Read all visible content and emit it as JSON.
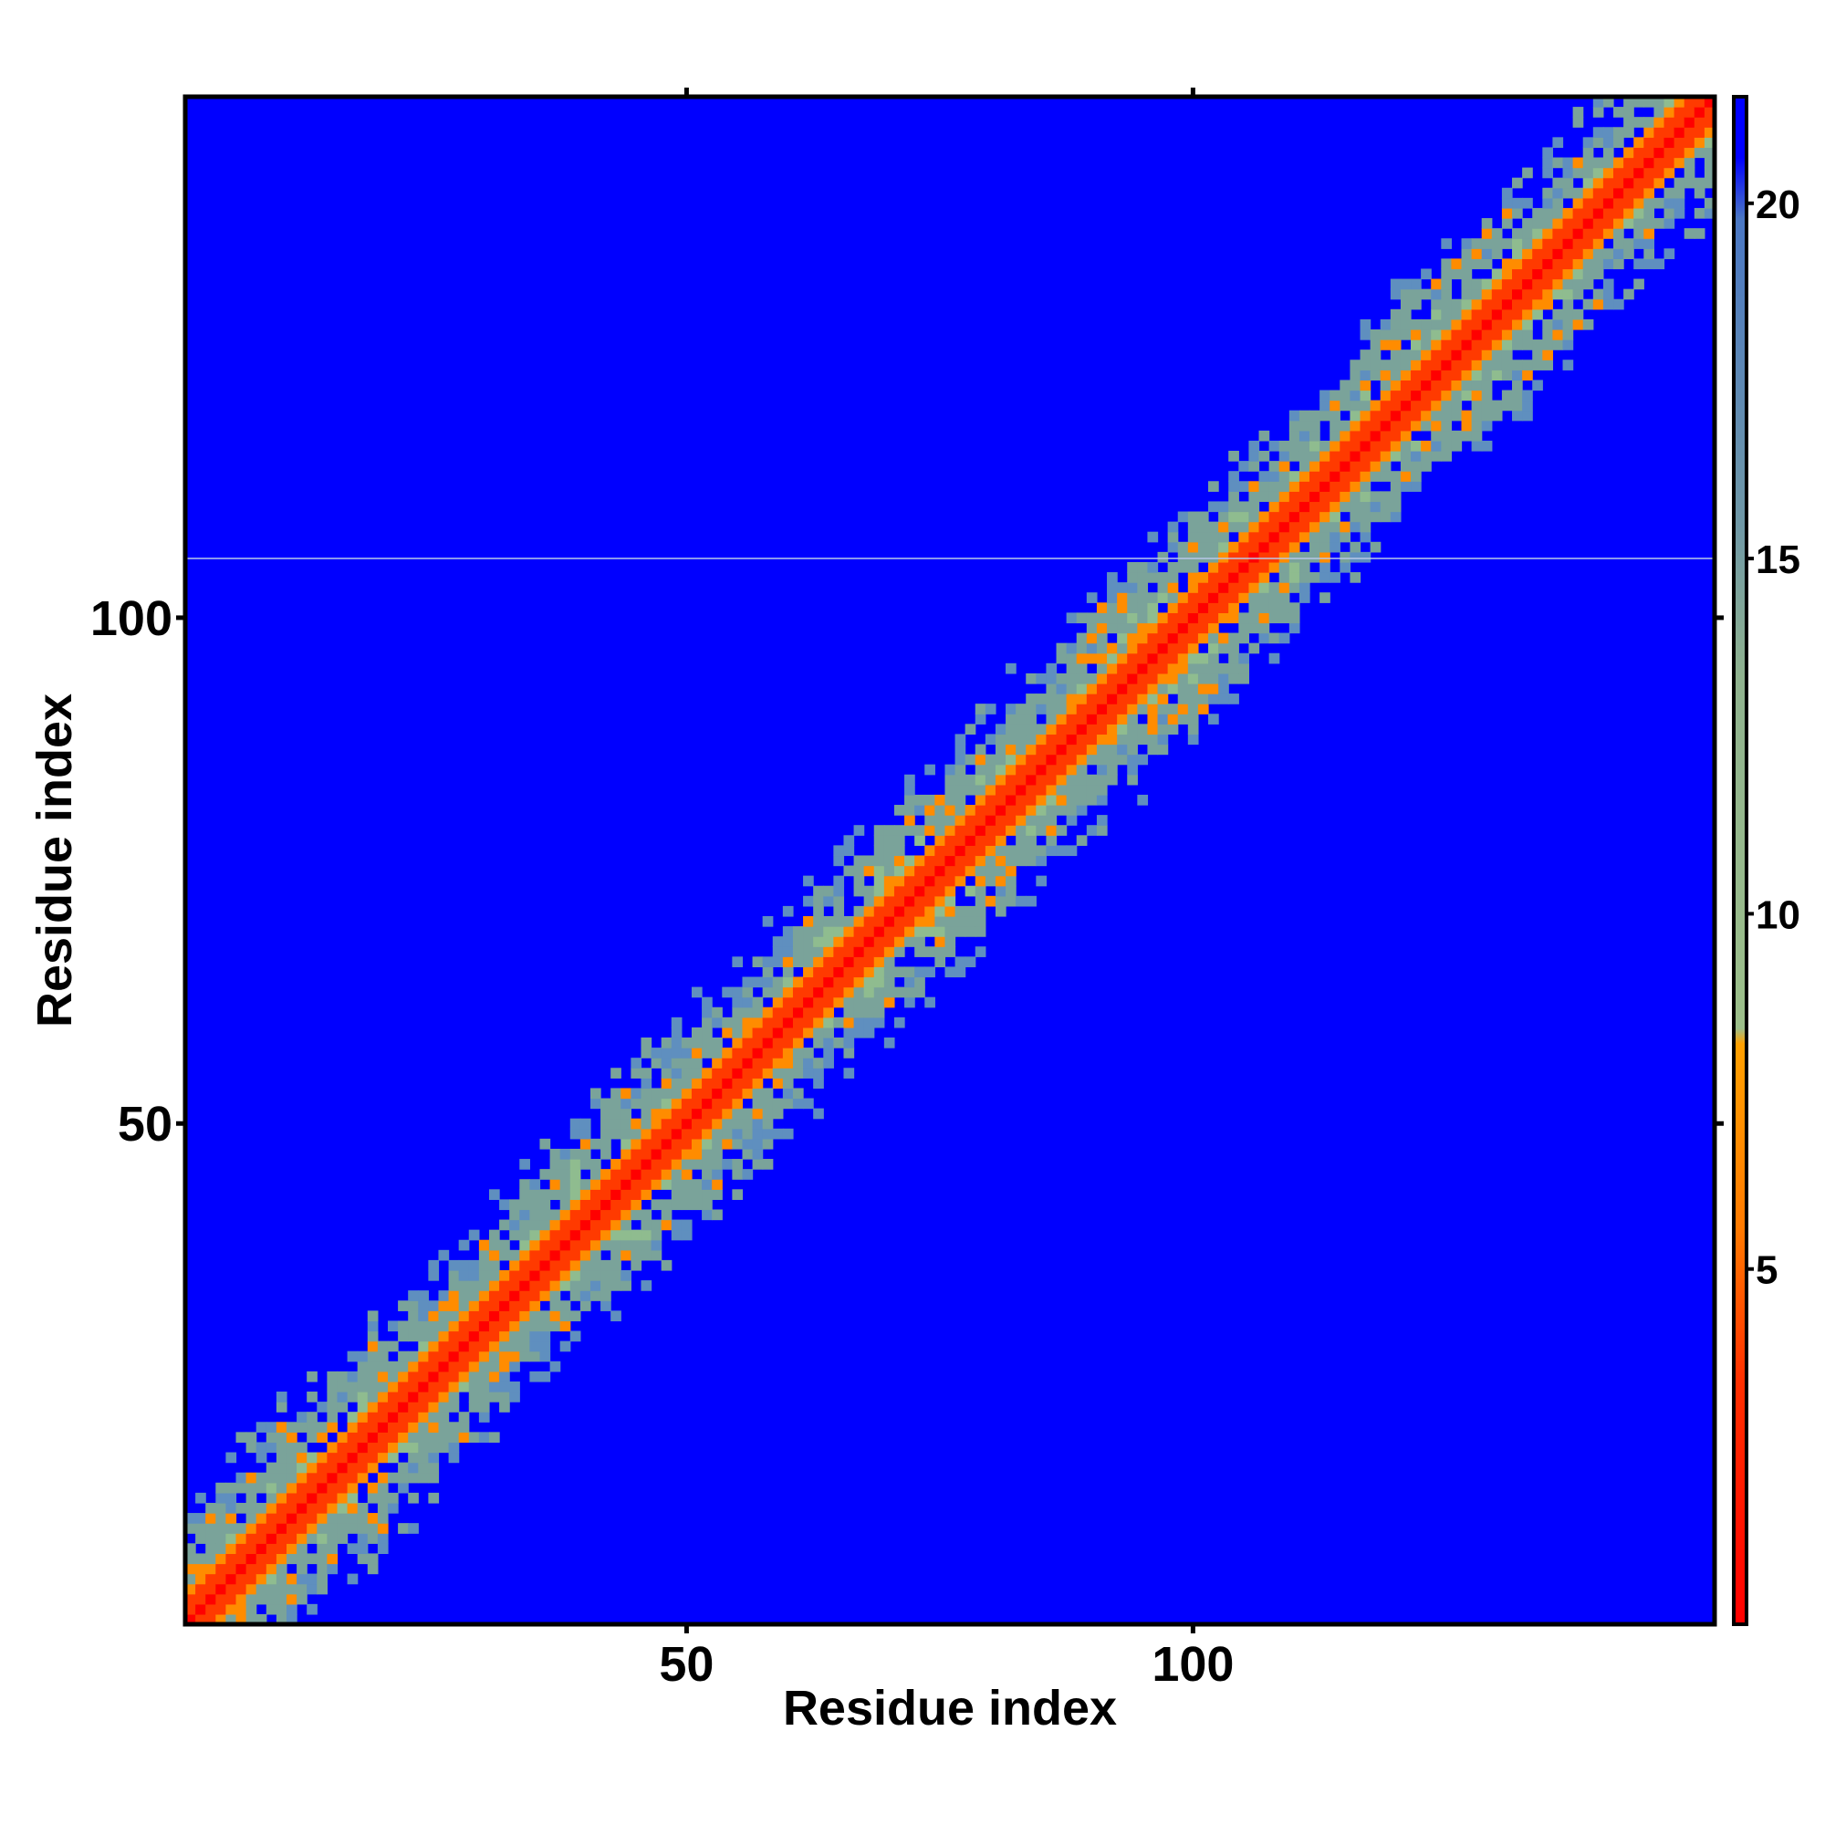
{
  "chart_data": {
    "type": "heatmap",
    "title": "",
    "xlabel": "Residue index",
    "ylabel": "Residue index",
    "xlim": [
      1,
      151
    ],
    "ylim": [
      1,
      151
    ],
    "x_ticks": [
      50,
      100
    ],
    "x_tick_labels": [
      "50",
      "100"
    ],
    "y_ticks": [
      50,
      100
    ],
    "y_tick_labels": [
      "50",
      "100"
    ],
    "colorbar": {
      "range": [
        0,
        21.5
      ],
      "ticks": [
        5,
        10,
        15,
        20
      ],
      "tick_labels": [
        "5",
        "10",
        "15",
        "20"
      ],
      "colors": {
        "low": "#ff0000",
        "mid_low": "#ff8c00",
        "mid": "#8fbc8f",
        "high": "#5f8fbf",
        "max": "#0000ff"
      }
    },
    "matrix_description_value": "pairwise distance map, values ~0-4 on diagonal, ~5-8 adjacent, ~9-15 band within ~10 residues, >20 elsewhere",
    "band": {
      "diagonal_value_range": [
        0,
        4
      ],
      "near_value_range": [
        5,
        8
      ],
      "halo_value_range": [
        9,
        18
      ],
      "background_value": 21
    },
    "grid": false,
    "legend": "colorbar-right"
  }
}
